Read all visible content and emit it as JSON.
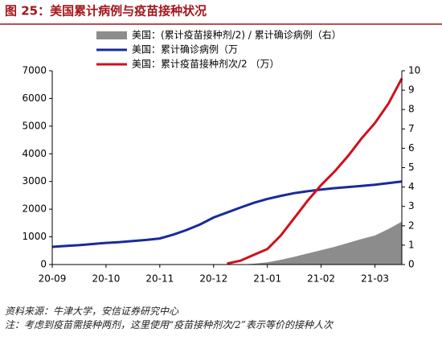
{
  "chart_data": {
    "type": "line",
    "title": "图 25：美国累计病例与疫苗接种状况",
    "source": "资料来源：牛津大学，安信证券研究中心",
    "note": "注：考虑到疫苗需接种两剂，这里使用“疫苗接种剂次/2”表示等价的接种人次",
    "x": [
      0,
      0.25,
      0.5,
      0.75,
      1,
      1.25,
      1.5,
      1.75,
      2,
      2.25,
      2.5,
      2.75,
      3,
      3.25,
      3.5,
      3.75,
      4,
      4.25,
      4.5,
      4.75,
      5,
      5.25,
      5.5,
      5.75,
      6,
      6.25,
      6.5
    ],
    "xlim": [
      0,
      6.5
    ],
    "xticks": [
      {
        "value": 0,
        "label": "20-09"
      },
      {
        "value": 1,
        "label": "20-10"
      },
      {
        "value": 2,
        "label": "20-11"
      },
      {
        "value": 3,
        "label": "20-12"
      },
      {
        "value": 4,
        "label": "21-01"
      },
      {
        "value": 5,
        "label": "21-02"
      },
      {
        "value": 6,
        "label": "21-03"
      }
    ],
    "ylim": [
      0,
      7000
    ],
    "yticks": [
      0,
      1000,
      2000,
      3000,
      4000,
      5000,
      6000,
      7000
    ],
    "y2lim": [
      0,
      10
    ],
    "y2ticks": [
      0,
      1,
      2,
      3,
      4,
      5,
      6,
      7,
      8,
      9,
      10
    ],
    "series": [
      {
        "name": "美国：(累计疫苗接种剂/2) / 累计确诊病例（右）",
        "color": "#8c8c8c",
        "kind": "area",
        "values": [
          null,
          null,
          null,
          null,
          null,
          null,
          null,
          null,
          null,
          null,
          null,
          null,
          null,
          null,
          0,
          30,
          80,
          170,
          280,
          400,
          520,
          640,
          780,
          920,
          1050,
          1280,
          1550
        ]
      },
      {
        "name": "美国：累计确诊病例（万",
        "color": "#1a2a9c",
        "kind": "line",
        "values": [
          640,
          670,
          700,
          740,
          780,
          810,
          850,
          890,
          940,
          1080,
          1250,
          1450,
          1700,
          1880,
          2060,
          2230,
          2370,
          2480,
          2580,
          2650,
          2710,
          2760,
          2800,
          2840,
          2880,
          2940,
          3000
        ]
      },
      {
        "name": "美国：累计疫苗接种剂次/2 （万）",
        "color": "#d0101a",
        "kind": "line",
        "axis": "y2",
        "values": [
          null,
          null,
          null,
          null,
          null,
          null,
          null,
          null,
          null,
          null,
          null,
          null,
          null,
          0.05,
          0.2,
          0.5,
          0.8,
          1.5,
          2.4,
          3.3,
          4.1,
          4.8,
          5.6,
          6.5,
          7.3,
          8.3,
          9.6
        ]
      }
    ]
  }
}
